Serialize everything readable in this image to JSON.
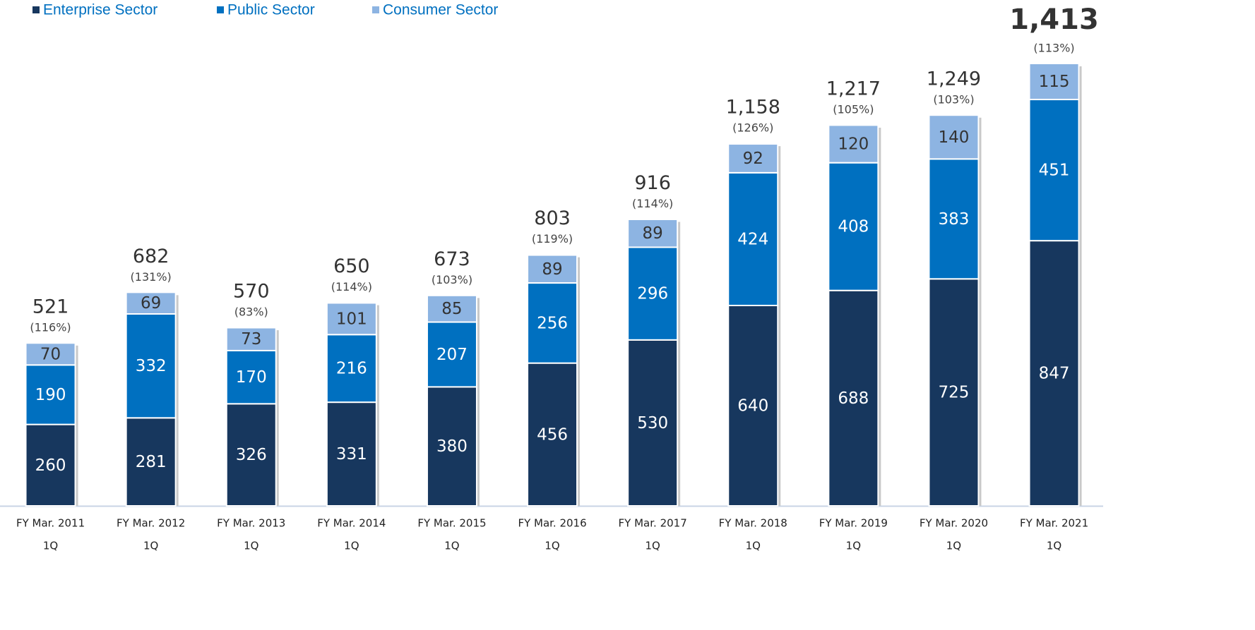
{
  "chart_data": {
    "type": "stacked_bar",
    "categories": [
      [
        "FY Mar. 2011",
        "1Q"
      ],
      [
        "FY Mar. 2012",
        "1Q"
      ],
      [
        "FY Mar. 2013",
        "1Q"
      ],
      [
        "FY Mar. 2014",
        "1Q"
      ],
      [
        "FY Mar. 2015",
        "1Q"
      ],
      [
        "FY Mar. 2016",
        "1Q"
      ],
      [
        "FY Mar. 2017",
        "1Q"
      ],
      [
        "FY Mar. 2018",
        "1Q"
      ],
      [
        "FY Mar. 2019",
        "1Q"
      ],
      [
        "FY Mar. 2020",
        "1Q"
      ],
      [
        "FY Mar. 2021",
        "1Q"
      ]
    ],
    "series": [
      {
        "name": "Enterprise Sector",
        "color": "#17375e",
        "values": [
          260,
          281,
          326,
          331,
          380,
          456,
          530,
          640,
          688,
          725,
          847
        ]
      },
      {
        "name": "Public Sector",
        "color": "#0070c0",
        "values": [
          190,
          332,
          170,
          216,
          207,
          256,
          296,
          424,
          408,
          383,
          451
        ]
      },
      {
        "name": "Consumer Sector",
        "color": "#8db4e2",
        "values": [
          70,
          69,
          73,
          101,
          85,
          89,
          89,
          92,
          120,
          140,
          115
        ]
      }
    ],
    "totals": [
      521,
      682,
      570,
      650,
      673,
      803,
      916,
      1158,
      1217,
      1249,
      1413
    ],
    "total_labels": [
      "521",
      "682",
      "570",
      "650",
      "673",
      "803",
      "916",
      "1,158",
      "1,217",
      "1,249",
      "1,413"
    ],
    "growth_labels": [
      "(116%)",
      "(131%)",
      "(83%)",
      "(114%)",
      "(103%)",
      "(119%)",
      "(114%)",
      "(126%)",
      "(105%)",
      "(103%)",
      "(113%)"
    ],
    "ylim": [
      0,
      1500
    ],
    "legend": "top-left"
  }
}
